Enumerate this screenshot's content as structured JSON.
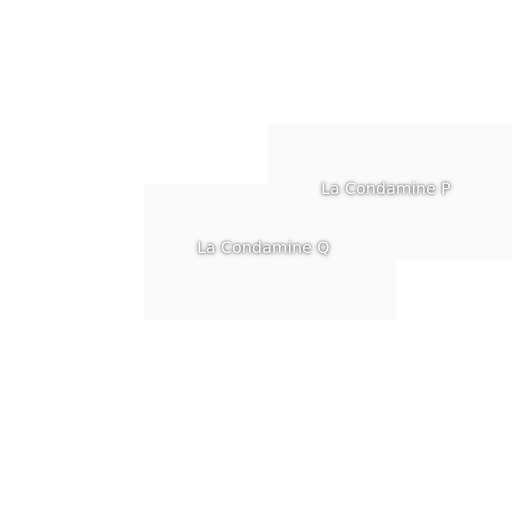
{
  "map": {
    "labels": [
      {
        "id": "p",
        "text": "La Condamine P"
      },
      {
        "id": "q",
        "text": "La Condamine Q"
      }
    ],
    "colors": {
      "background": "#ffffff",
      "label_text": "#ffffff",
      "label_halo": "#000000"
    }
  }
}
